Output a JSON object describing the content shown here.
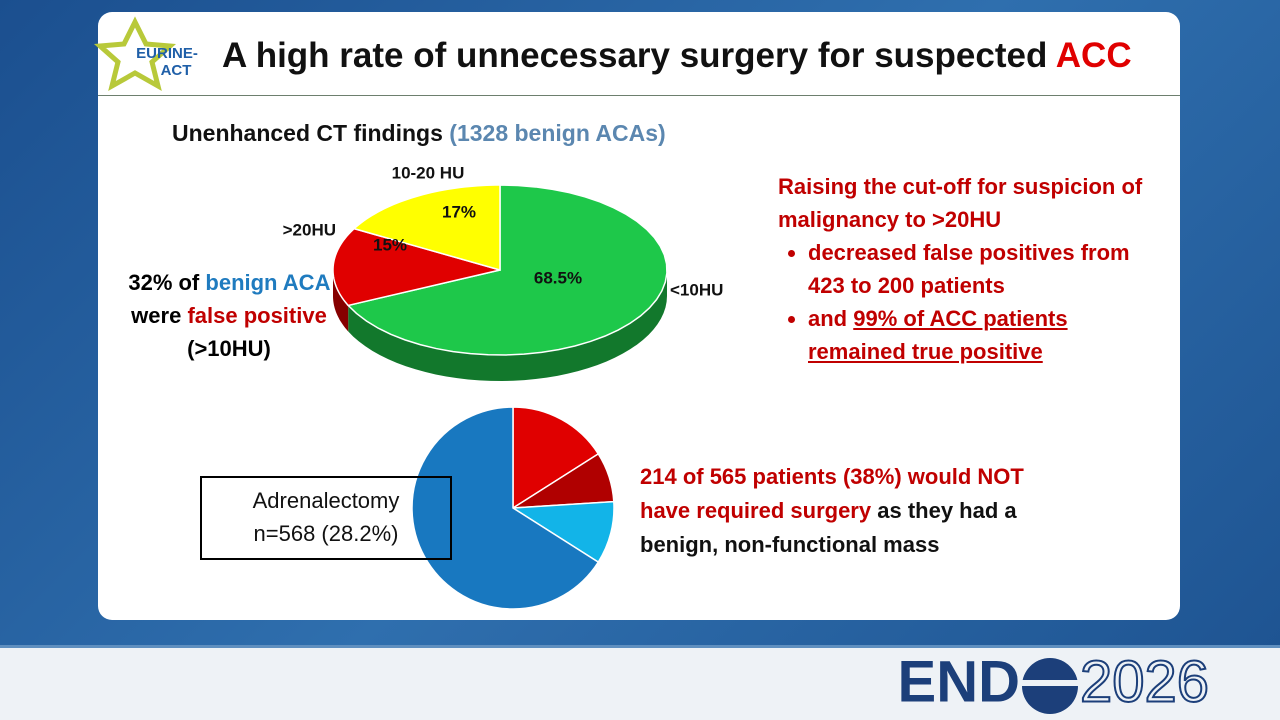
{
  "logo": {
    "line1": "EURINE-",
    "line2": "ACT"
  },
  "title": {
    "text": "A high rate of unnecessary surgery for suspected",
    "highlight": "ACC"
  },
  "note": [
    {
      "text": "32% of",
      "color": "#000000"
    },
    {
      "text": "benign ACA",
      "color": "#1f7bbf"
    },
    {
      "text": "were",
      "color": "#000000"
    },
    {
      "text": "false positive",
      "color": "#c00000"
    },
    {
      "text": "(>10HU)",
      "color": "#000000"
    }
  ],
  "findings": {
    "heading": "Raising the cut-off for suspicion of malignancy to >20HU",
    "bullet1": "decreased false positives from 423 to 200 patients",
    "bullet2_lead": "and",
    "bullet2_underlined": "99% of ACC patients remained true positive"
  },
  "box": {
    "line1": "Adrenalectomy",
    "line2": "n=568 (28.2%)"
  },
  "conclusion": {
    "red": "214 of 565 patients (38%) would NOT have required surgery",
    "black": "as they had a benign, non-functional mass"
  },
  "footer": {
    "brand_left": "END",
    "brand_right": "2026"
  },
  "chart_data": [
    {
      "type": "pie3d",
      "title": "Unenhanced CT findings",
      "subtitle": "(1328 benign ACAs)",
      "categories": [
        "<10HU",
        ">20HU",
        "10-20 HU"
      ],
      "values": [
        68.5,
        15,
        17
      ],
      "value_labels": [
        "68.5%",
        "15%",
        "17%"
      ],
      "colors": [
        "#1ec84a",
        "#e00000",
        "#ffff00"
      ]
    },
    {
      "type": "pie",
      "categories": [
        null,
        null,
        null,
        null
      ],
      "values": [
        16,
        8,
        10,
        66
      ],
      "colors": [
        "#e00000",
        "#b00000",
        "#12b4e8",
        "#1878c0"
      ]
    }
  ]
}
